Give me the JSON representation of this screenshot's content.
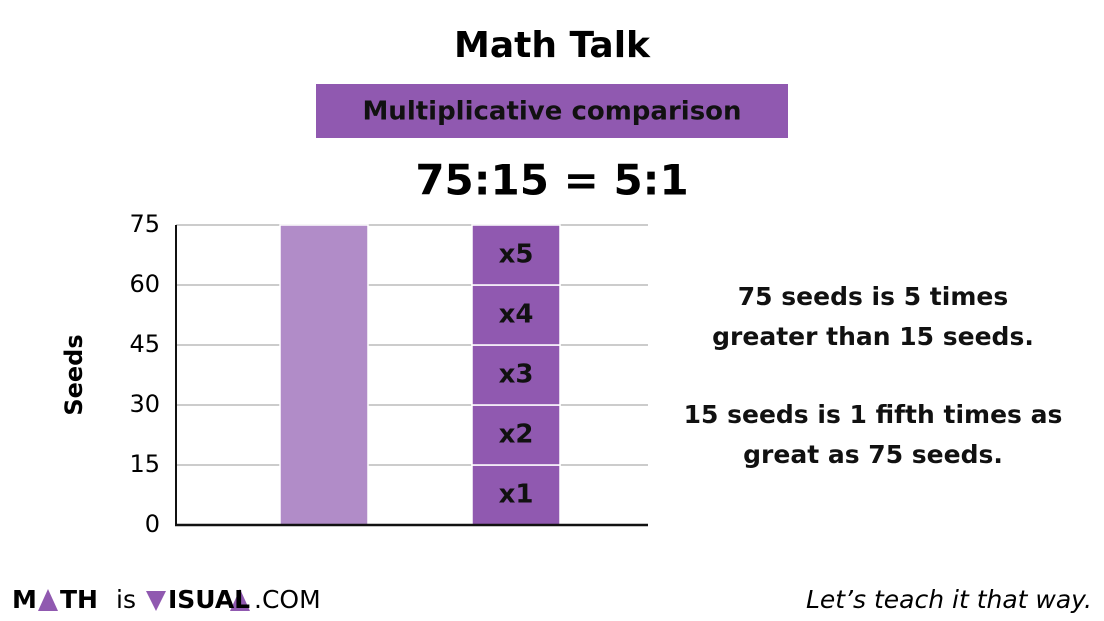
{
  "chart_data": {
    "type": "bar",
    "title": "Math Talk",
    "subtitle": "Multiplicative comparison",
    "equation": "75:15 = 5:1",
    "y_label": "Seeds",
    "categories": [
      null,
      null
    ],
    "series": [
      {
        "color": "#b18cc8",
        "values": [
          75,
          null
        ]
      },
      {
        "color": "#9059b0",
        "values": [
          null,
          15
        ],
        "label": "x1"
      },
      {
        "color": "#9059b0",
        "values": [
          null,
          15
        ],
        "label": "x2"
      },
      {
        "color": "#9059b0",
        "values": [
          null,
          15
        ],
        "label": "x3"
      },
      {
        "color": "#9059b0",
        "values": [
          null,
          15
        ],
        "label": "x4"
      },
      {
        "color": "#9059b0",
        "values": [
          null,
          15
        ],
        "label": "x5"
      }
    ],
    "stacked": true,
    "ylim": [
      0,
      75
    ],
    "yticks": [
      0,
      15,
      30,
      45,
      60,
      75
    ],
    "grid": true,
    "notes": [
      [
        "75 seeds is 5 times",
        "greater than 15 seeds."
      ],
      [
        "15 seeds is 1 fifth times as",
        "great as 75 seeds."
      ]
    ]
  },
  "footer": {
    "logo": [
      "M",
      "TH",
      "is",
      "ISUAL",
      ".COM"
    ],
    "tagline": "Let’s teach it that way."
  }
}
